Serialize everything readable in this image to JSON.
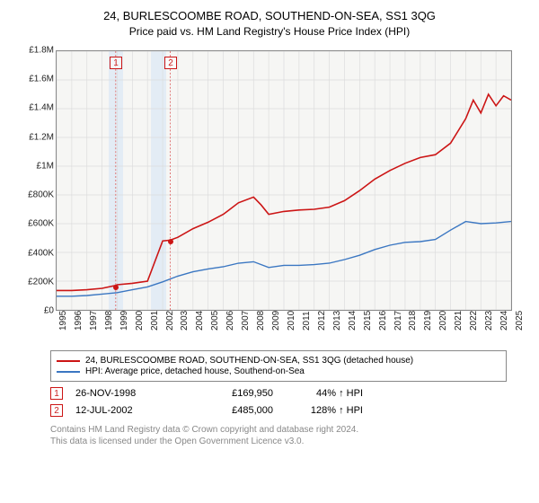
{
  "title": "24, BURLESCOOMBE ROAD, SOUTHEND-ON-SEA, SS1 3QG",
  "subtitle": "Price paid vs. HM Land Registry's House Price Index (HPI)",
  "chart": {
    "type": "line",
    "background_color": "#f6f6f4",
    "border_color": "#8a8a8a",
    "grid_color": "#dcdcdc",
    "xlim": [
      1995,
      2025
    ],
    "ylim": [
      0,
      1800000
    ],
    "ytick_step": 200000,
    "ytick_labels": [
      "£0",
      "£200K",
      "£400K",
      "£600K",
      "£800K",
      "£1M",
      "£1.2M",
      "£1.4M",
      "£1.6M",
      "£1.8M"
    ],
    "xtick_step": 1,
    "xtick_labels": [
      "1995",
      "1996",
      "1997",
      "1998",
      "1999",
      "2000",
      "2001",
      "2002",
      "2003",
      "2004",
      "2005",
      "2006",
      "2007",
      "2008",
      "2009",
      "2010",
      "2011",
      "2012",
      "2013",
      "2014",
      "2015",
      "2016",
      "2017",
      "2018",
      "2019",
      "2020",
      "2021",
      "2022",
      "2023",
      "2024",
      "2025"
    ],
    "shaded_bands": [
      {
        "from": 1998.4,
        "to": 1999.4,
        "color": "#e3ecf5"
      },
      {
        "from": 2001.2,
        "to": 2002.2,
        "color": "#e3ecf5"
      }
    ],
    "series": [
      {
        "id": "property",
        "label": "24, BURLESCOOMBE ROAD, SOUTHEND-ON-SEA, SS1 3QG (detached house)",
        "color": "#cc1515",
        "line_width": 1.6,
        "x": [
          1995,
          1996,
          1997,
          1998,
          1998.9,
          1999,
          2000,
          2001,
          2002,
          2002.5,
          2003,
          2004,
          2005,
          2006,
          2007,
          2008,
          2008.5,
          2009,
          2010,
          2011,
          2012,
          2013,
          2014,
          2015,
          2016,
          2017,
          2018,
          2019,
          2020,
          2021,
          2022,
          2022.5,
          2023,
          2023.5,
          2024,
          2024.5,
          2025
        ],
        "y": [
          135000,
          135000,
          140000,
          150000,
          169950,
          175000,
          185000,
          200000,
          480000,
          485000,
          505000,
          565000,
          610000,
          665000,
          745000,
          785000,
          730000,
          665000,
          685000,
          695000,
          700000,
          715000,
          760000,
          830000,
          910000,
          970000,
          1020000,
          1060000,
          1080000,
          1160000,
          1330000,
          1460000,
          1370000,
          1500000,
          1420000,
          1490000,
          1460000
        ]
      },
      {
        "id": "hpi",
        "label": "HPI: Average price, detached house, Southend-on-Sea",
        "color": "#3b77c2",
        "line_width": 1.4,
        "x": [
          1995,
          1996,
          1997,
          1998,
          1999,
          2000,
          2001,
          2002,
          2003,
          2004,
          2005,
          2006,
          2007,
          2008,
          2009,
          2010,
          2011,
          2012,
          2013,
          2014,
          2015,
          2016,
          2017,
          2018,
          2019,
          2020,
          2021,
          2022,
          2023,
          2024,
          2025
        ],
        "y": [
          95000,
          95000,
          100000,
          110000,
          120000,
          140000,
          160000,
          195000,
          235000,
          265000,
          285000,
          300000,
          325000,
          335000,
          295000,
          310000,
          310000,
          315000,
          325000,
          350000,
          380000,
          420000,
          450000,
          470000,
          475000,
          490000,
          555000,
          615000,
          600000,
          605000,
          615000
        ]
      }
    ],
    "sale_markers": [
      {
        "index": 1,
        "x": 1998.9,
        "y": 169950,
        "line_color": "#e07878"
      },
      {
        "index": 2,
        "x": 2002.5,
        "y": 485000,
        "line_color": "#e07878"
      }
    ],
    "marker_box_border": "#cc1515",
    "label_fontsize": 10,
    "title_fontsize": 13
  },
  "legend": {
    "border_color": "#888888",
    "rows": [
      {
        "color": "#cc1515",
        "label": "24, BURLESCOOMBE ROAD, SOUTHEND-ON-SEA, SS1 3QG (detached house)"
      },
      {
        "color": "#3b77c2",
        "label": "HPI: Average price, detached house, Southend-on-Sea"
      }
    ]
  },
  "sales_table": {
    "rows": [
      {
        "index": "1",
        "date": "26-NOV-1998",
        "price": "£169,950",
        "pct": "44% ↑ HPI"
      },
      {
        "index": "2",
        "date": "12-JUL-2002",
        "price": "£485,000",
        "pct": "128% ↑ HPI"
      }
    ],
    "marker_border": "#cc1515"
  },
  "footer": {
    "line1": "Contains HM Land Registry data © Crown copyright and database right 2024.",
    "line2": "This data is licensed under the Open Government Licence v3.0."
  }
}
